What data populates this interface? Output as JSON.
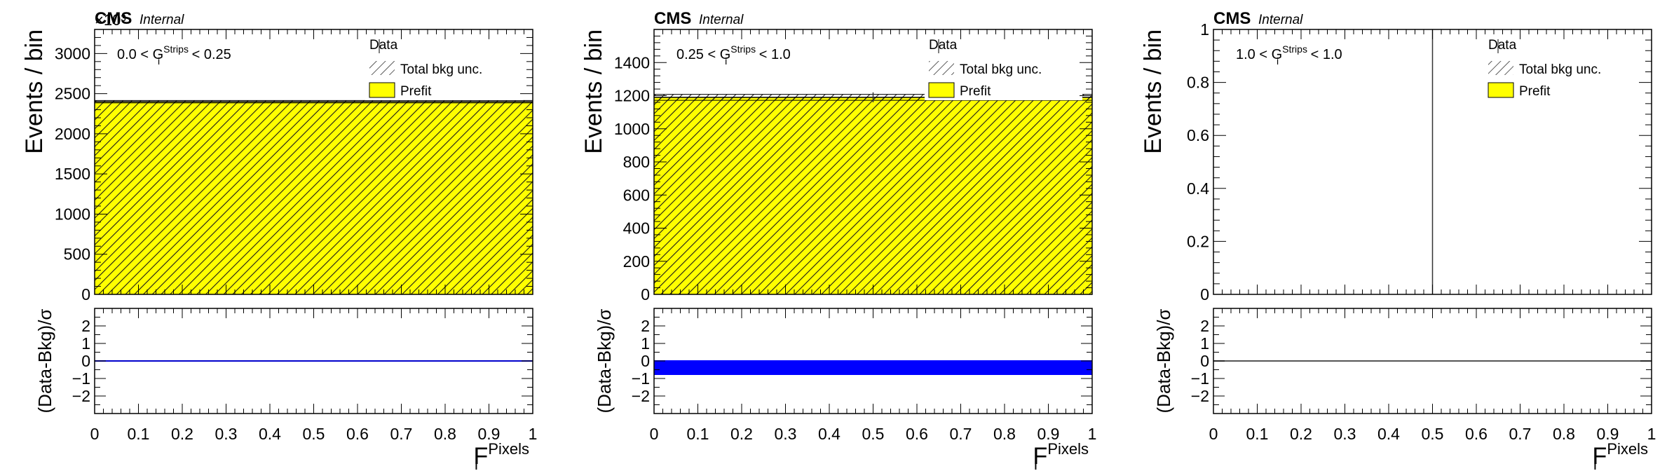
{
  "chart_data": [
    {
      "type": "bar",
      "experiment": "CMS",
      "status": "Internal",
      "scale_label": "×10³",
      "category_label": {
        "pre": "0.0 < G",
        "sup": "Strips",
        "sub": "i",
        "post": " < 0.25"
      },
      "ylabel": "Events / bin",
      "xlabel": {
        "main": "F",
        "sup": "Pixels",
        "sub": "i"
      },
      "xlim": [
        0,
        1
      ],
      "ylim": [
        0,
        3300
      ],
      "y_ticks": [
        0,
        500,
        1000,
        1500,
        2000,
        2500,
        3000
      ],
      "x_ticks": [
        0,
        0.1,
        0.2,
        0.3,
        0.4,
        0.5,
        0.6,
        0.7,
        0.8,
        0.9,
        1
      ],
      "bins": [
        0,
        1
      ],
      "prefit": [
        2400
      ],
      "bkg_unc": [
        15
      ],
      "data_marker_x": null,
      "legend": {
        "entries": [
          "Data",
          "Total bkg unc.",
          "Prefit"
        ],
        "position": "top-right"
      },
      "ratio": {
        "ylabel": "(Data-Bkg)/σ",
        "ylim": [
          -3,
          3
        ],
        "y_ticks": [
          -2,
          -1,
          0,
          1,
          2
        ],
        "values": [
          0
        ],
        "band": null,
        "line_color": "#0000cc"
      }
    },
    {
      "type": "bar",
      "experiment": "CMS",
      "status": "Internal",
      "scale_label": "",
      "category_label": {
        "pre": "0.25 < G",
        "sup": "Strips",
        "sub": "i",
        "post": " < 1.0"
      },
      "ylabel": "Events / bin",
      "xlabel": {
        "main": "F",
        "sup": "Pixels",
        "sub": "i"
      },
      "xlim": [
        0,
        1
      ],
      "ylim": [
        0,
        1600
      ],
      "y_ticks": [
        0,
        200,
        400,
        600,
        800,
        1000,
        1200,
        1400
      ],
      "x_ticks": [
        0,
        0.1,
        0.2,
        0.3,
        0.4,
        0.5,
        0.6,
        0.7,
        0.8,
        0.9,
        1
      ],
      "bins": [
        0,
        1
      ],
      "prefit": [
        1190
      ],
      "bkg_unc": [
        18
      ],
      "data_marker_x": 0.5,
      "legend": {
        "entries": [
          "Data",
          "Total bkg unc.",
          "Prefit"
        ],
        "position": "top-right"
      },
      "ratio": {
        "ylabel": "(Data-Bkg)/σ",
        "ylim": [
          -3,
          3
        ],
        "y_ticks": [
          -2,
          -1,
          0,
          1,
          2
        ],
        "values": [
          0
        ],
        "band": [
          -0.8,
          0
        ],
        "line_color": "#0000ff"
      }
    },
    {
      "type": "bar",
      "experiment": "CMS",
      "status": "Internal",
      "scale_label": "",
      "category_label": {
        "pre": "1.0 < G",
        "sup": "Strips",
        "sub": "i",
        "post": " < 1.0"
      },
      "ylabel": "Events / bin",
      "xlabel": {
        "main": "F",
        "sup": "Pixels",
        "sub": "i"
      },
      "xlim": [
        0,
        1
      ],
      "ylim": [
        0,
        1
      ],
      "y_ticks": [
        0,
        0.2,
        0.4,
        0.6,
        0.8,
        1
      ],
      "x_ticks": [
        0,
        0.1,
        0.2,
        0.3,
        0.4,
        0.5,
        0.6,
        0.7,
        0.8,
        0.9,
        1
      ],
      "bins": [
        0,
        1
      ],
      "prefit": [
        0
      ],
      "bkg_unc": [
        0
      ],
      "data_marker_x": 0.5,
      "legend": {
        "entries": [
          "Data",
          "Total bkg unc.",
          "Prefit"
        ],
        "position": "top-right"
      },
      "ratio": {
        "ylabel": "(Data-Bkg)/σ",
        "ylim": [
          -3,
          3
        ],
        "y_ticks": [
          -2,
          -1,
          0,
          1,
          2
        ],
        "values": [
          0
        ],
        "band": null,
        "line_color": "#555555"
      }
    }
  ],
  "colors": {
    "prefit_fill": "#ffff00",
    "prefit_fill_dark": "#e8e000",
    "hatch": "#1a1a1a",
    "frame": "#000000",
    "ratio_band": "#0000ff"
  }
}
